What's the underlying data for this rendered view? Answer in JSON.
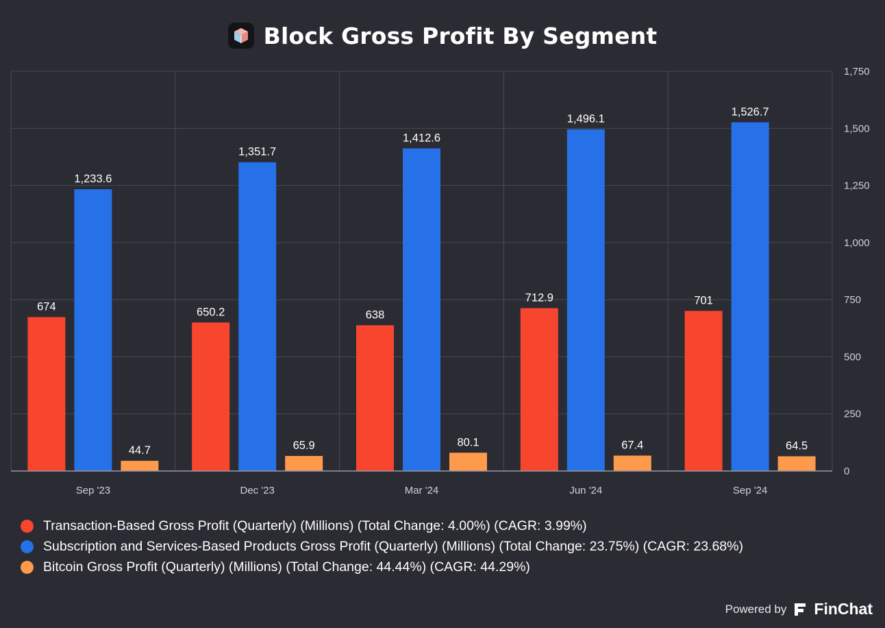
{
  "header": {
    "title": "Block Gross Profit By Segment",
    "logo_icon": "block-cube-logo-icon"
  },
  "chart_data": {
    "type": "bar",
    "title": "Block Gross Profit By Segment",
    "categories": [
      "Sep '23",
      "Dec '23",
      "Mar '24",
      "Jun '24",
      "Sep '24"
    ],
    "series": [
      {
        "name": "Transaction-Based Gross Profit (Quarterly) (Millions) (Total Change: 4.00%) (CAGR: 3.99%)",
        "color": "#f8462e",
        "values": [
          674,
          650.2,
          638,
          712.9,
          701
        ],
        "labels": [
          "674",
          "650.2",
          "638",
          "712.9",
          "701"
        ]
      },
      {
        "name": "Subscription and Services-Based Products Gross Profit (Quarterly) (Millions) (Total Change: 23.75%) (CAGR: 23.68%)",
        "color": "#2670e8",
        "values": [
          1233.6,
          1351.7,
          1412.6,
          1496.1,
          1526.7
        ],
        "labels": [
          "1,233.6",
          "1,351.7",
          "1,412.6",
          "1,496.1",
          "1,526.7"
        ]
      },
      {
        "name": "Bitcoin Gross Profit (Quarterly) (Millions) (Total Change: 44.44%) (CAGR: 44.29%)",
        "color": "#fd9a4b",
        "values": [
          44.7,
          65.9,
          80.1,
          67.4,
          64.5
        ],
        "labels": [
          "44.7",
          "65.9",
          "80.1",
          "67.4",
          "64.5"
        ]
      }
    ],
    "ylim": [
      0,
      1750
    ],
    "yticks": [
      0,
      250,
      500,
      750,
      1000,
      1250,
      1500,
      1750
    ],
    "ytick_labels": [
      "0",
      "250",
      "500",
      "750",
      "1,000",
      "1,250",
      "1,500",
      "1,750"
    ],
    "y_axis_side": "right",
    "grid": true,
    "legend_position": "bottom-left"
  },
  "legend": {
    "items": [
      {
        "label": "Transaction-Based Gross Profit (Quarterly) (Millions) (Total Change: 4.00%) (CAGR: 3.99%)",
        "color": "#f8462e"
      },
      {
        "label": "Subscription and Services-Based Products Gross Profit (Quarterly) (Millions) (Total Change: 23.75%) (CAGR: 23.68%)",
        "color": "#2670e8"
      },
      {
        "label": "Bitcoin Gross Profit (Quarterly) (Millions) (Total Change: 44.44%) (CAGR: 44.29%)",
        "color": "#fd9a4b"
      }
    ]
  },
  "footer": {
    "powered_by": "Powered by",
    "brand": "FinChat",
    "brand_icon": "finchat-logo-icon"
  },
  "colors": {
    "background": "#2b2b33",
    "grid": "#4a4a54",
    "axis_text": "#d0d0d6"
  }
}
